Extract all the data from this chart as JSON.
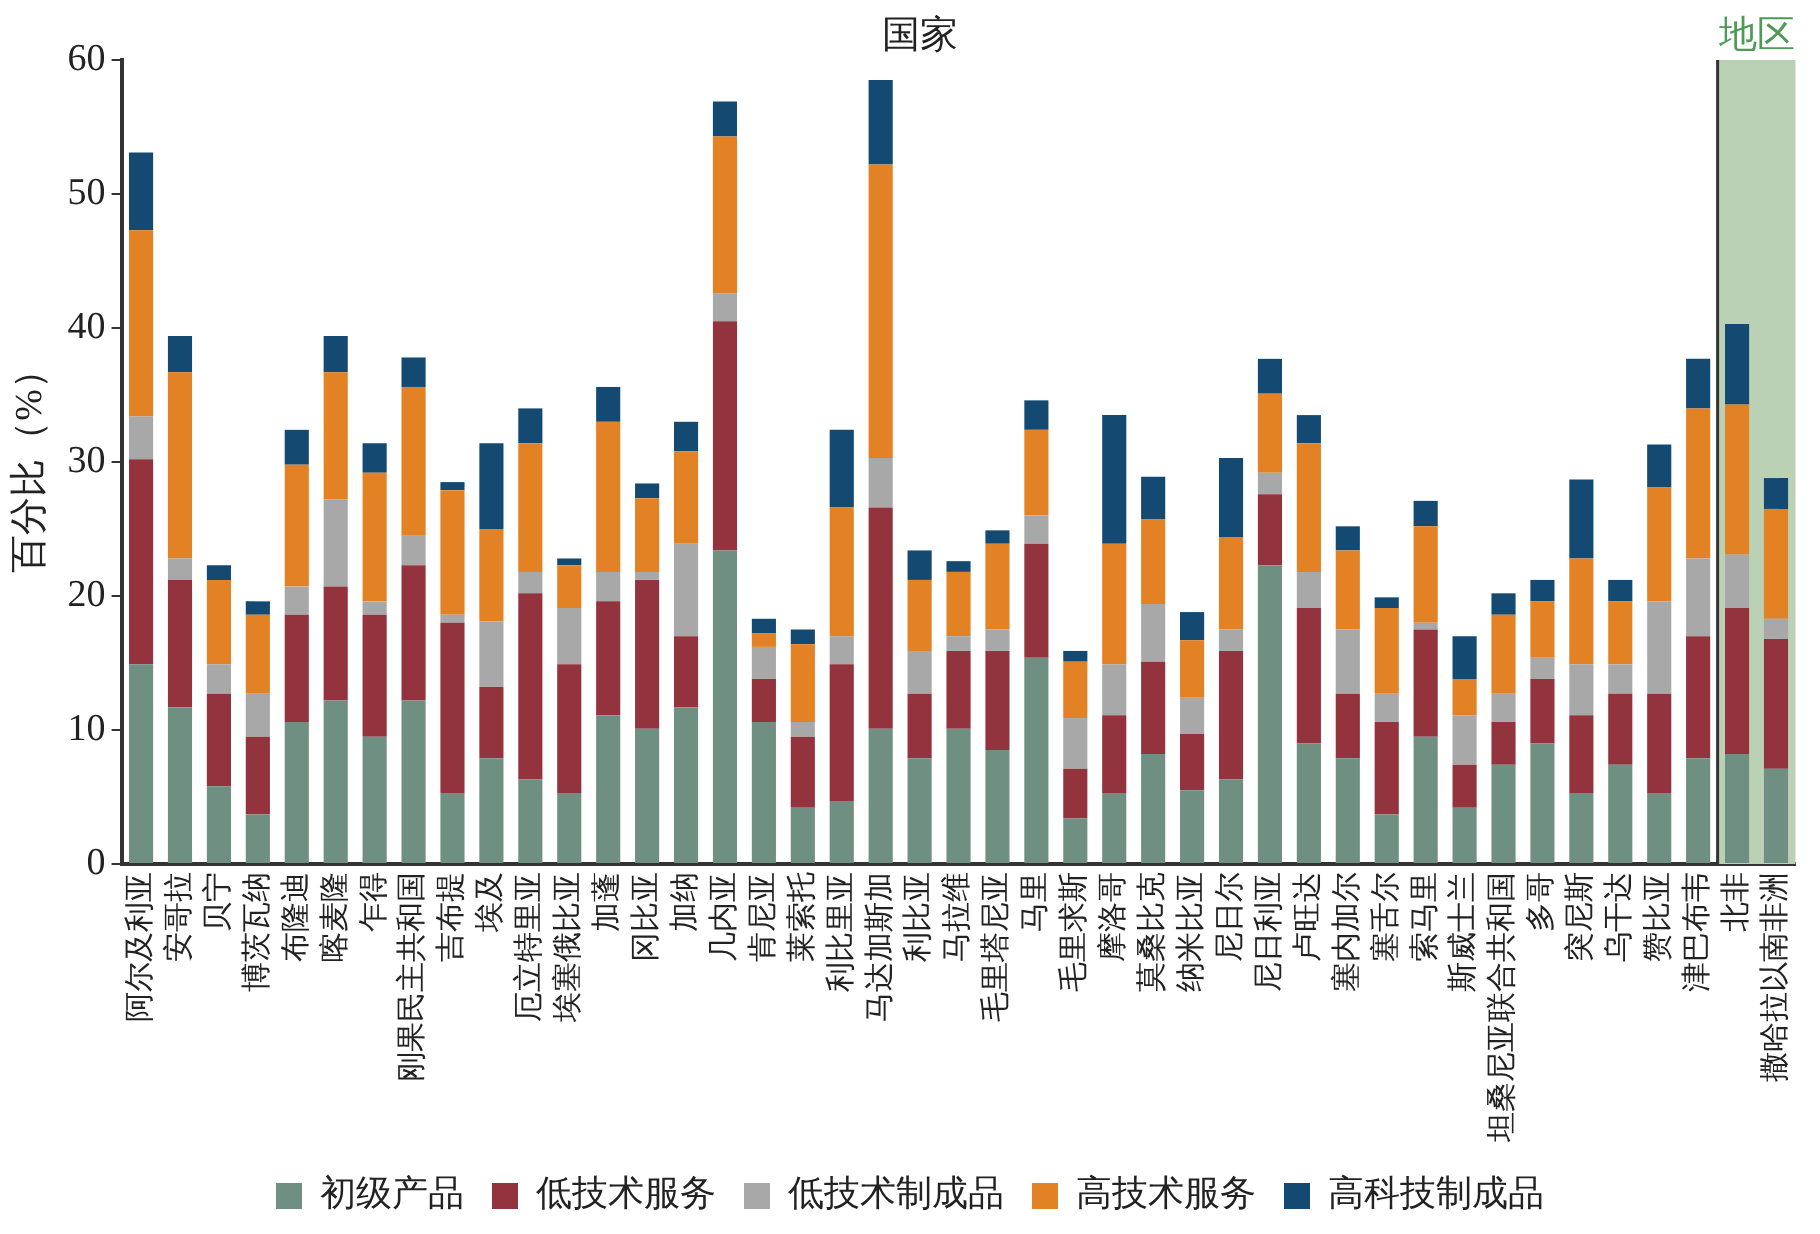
{
  "chart_data": {
    "type": "bar",
    "stacked": true,
    "ylabel": "百分比（%）",
    "annotations": [
      "国家"
    ],
    "categories": [
      "阿尔及利亚",
      "安哥拉",
      "贝宁",
      "博茨瓦纳",
      "布隆迪",
      "喀麦隆",
      "乍得",
      "刚果民主共和国",
      "吉布提",
      "埃及",
      "厄立特里亚",
      "埃塞俄比亚",
      "加蓬",
      "冈比亚",
      "加纳",
      "几内亚",
      "肯尼亚",
      "莱索托",
      "利比里亚",
      "马达加斯加",
      "利比亚",
      "马拉维",
      "毛里塔尼亚",
      "马里",
      "毛里求斯",
      "摩洛哥",
      "莫桑比克",
      "纳米比亚",
      "尼日尔",
      "尼日利亚",
      "卢旺达",
      "塞内加尔",
      "塞舌尔",
      "索马里",
      "斯威士兰",
      "坦桑尼亚联合共和国",
      "多哥",
      "突尼斯",
      "乌干达",
      "赞比亚",
      "津巴布韦",
      "北非",
      "撒哈拉以南非洲"
    ],
    "series": [
      {
        "name": "初级产品",
        "color": "#6f8f82",
        "values": [
          14.9,
          11.7,
          5.8,
          3.7,
          10.6,
          12.2,
          9.5,
          12.2,
          5.3,
          7.9,
          6.3,
          5.3,
          11.1,
          10.1,
          11.7,
          23.4,
          10.6,
          4.2,
          4.7,
          10.1,
          7.9,
          10.1,
          8.5,
          15.4,
          3.4,
          5.3,
          8.2,
          5.5,
          6.3,
          22.3,
          9.0,
          7.9,
          3.7,
          9.5,
          4.2,
          7.4,
          9.0,
          5.3,
          7.4,
          5.3,
          7.9,
          8.2,
          7.1
        ]
      },
      {
        "name": "低技术服务",
        "color": "#93333e",
        "values": [
          15.3,
          9.5,
          6.9,
          5.8,
          8.0,
          8.5,
          9.1,
          10.1,
          12.7,
          5.3,
          13.9,
          9.6,
          8.5,
          11.1,
          5.3,
          17.1,
          3.2,
          5.3,
          10.2,
          16.5,
          4.8,
          5.8,
          7.4,
          8.5,
          3.7,
          5.8,
          6.9,
          4.2,
          9.6,
          5.3,
          10.1,
          4.8,
          6.9,
          8.0,
          3.2,
          3.2,
          4.8,
          5.8,
          5.3,
          7.4,
          9.1,
          10.9,
          9.7
        ]
      },
      {
        "name": "低技术制成品",
        "color": "#a8a8a8",
        "values": [
          3.2,
          1.6,
          2.2,
          3.2,
          2.1,
          6.5,
          1.0,
          2.2,
          0.6,
          4.9,
          1.6,
          4.2,
          2.2,
          0.6,
          6.9,
          2.1,
          2.4,
          1.1,
          2.1,
          3.7,
          3.2,
          1.1,
          1.6,
          2.1,
          3.8,
          3.8,
          4.3,
          2.7,
          1.6,
          1.6,
          2.7,
          4.8,
          2.1,
          0.5,
          3.7,
          2.1,
          1.6,
          3.8,
          2.2,
          6.9,
          5.8,
          4.0,
          1.5
        ]
      },
      {
        "name": "高技术服务",
        "color": "#e38125",
        "values": [
          13.9,
          13.9,
          6.3,
          5.9,
          9.1,
          9.5,
          9.6,
          11.1,
          9.3,
          6.9,
          9.6,
          3.2,
          11.2,
          5.5,
          6.9,
          11.7,
          1.0,
          5.8,
          9.6,
          21.9,
          5.3,
          4.8,
          6.4,
          6.4,
          4.2,
          9.0,
          6.3,
          4.3,
          6.9,
          5.9,
          9.6,
          5.9,
          6.4,
          7.2,
          2.7,
          5.9,
          4.2,
          7.9,
          4.7,
          8.5,
          11.2,
          11.2,
          8.2
        ]
      },
      {
        "name": "高科技制成品",
        "color": "#144a72",
        "values": [
          5.8,
          2.7,
          1.1,
          1.0,
          2.6,
          2.7,
          2.2,
          2.2,
          0.6,
          6.4,
          2.6,
          0.5,
          2.6,
          1.1,
          2.2,
          2.6,
          1.1,
          1.1,
          5.8,
          6.3,
          2.2,
          0.8,
          1.0,
          2.2,
          0.8,
          9.6,
          3.2,
          2.1,
          5.9,
          2.6,
          2.1,
          1.8,
          0.8,
          1.9,
          3.2,
          1.6,
          1.6,
          5.9,
          1.6,
          3.2,
          3.7,
          6.0,
          2.3
        ]
      }
    ],
    "ylim": [
      0,
      60
    ],
    "yticks": [
      0,
      10,
      20,
      30,
      40,
      50,
      60
    ],
    "grid": false,
    "legend": "bottom",
    "bands": [
      {
        "axis": "x",
        "from": "北非",
        "to": "撒哈拉以南非洲",
        "label": "地区",
        "color": "#bbd1b5"
      }
    ]
  }
}
